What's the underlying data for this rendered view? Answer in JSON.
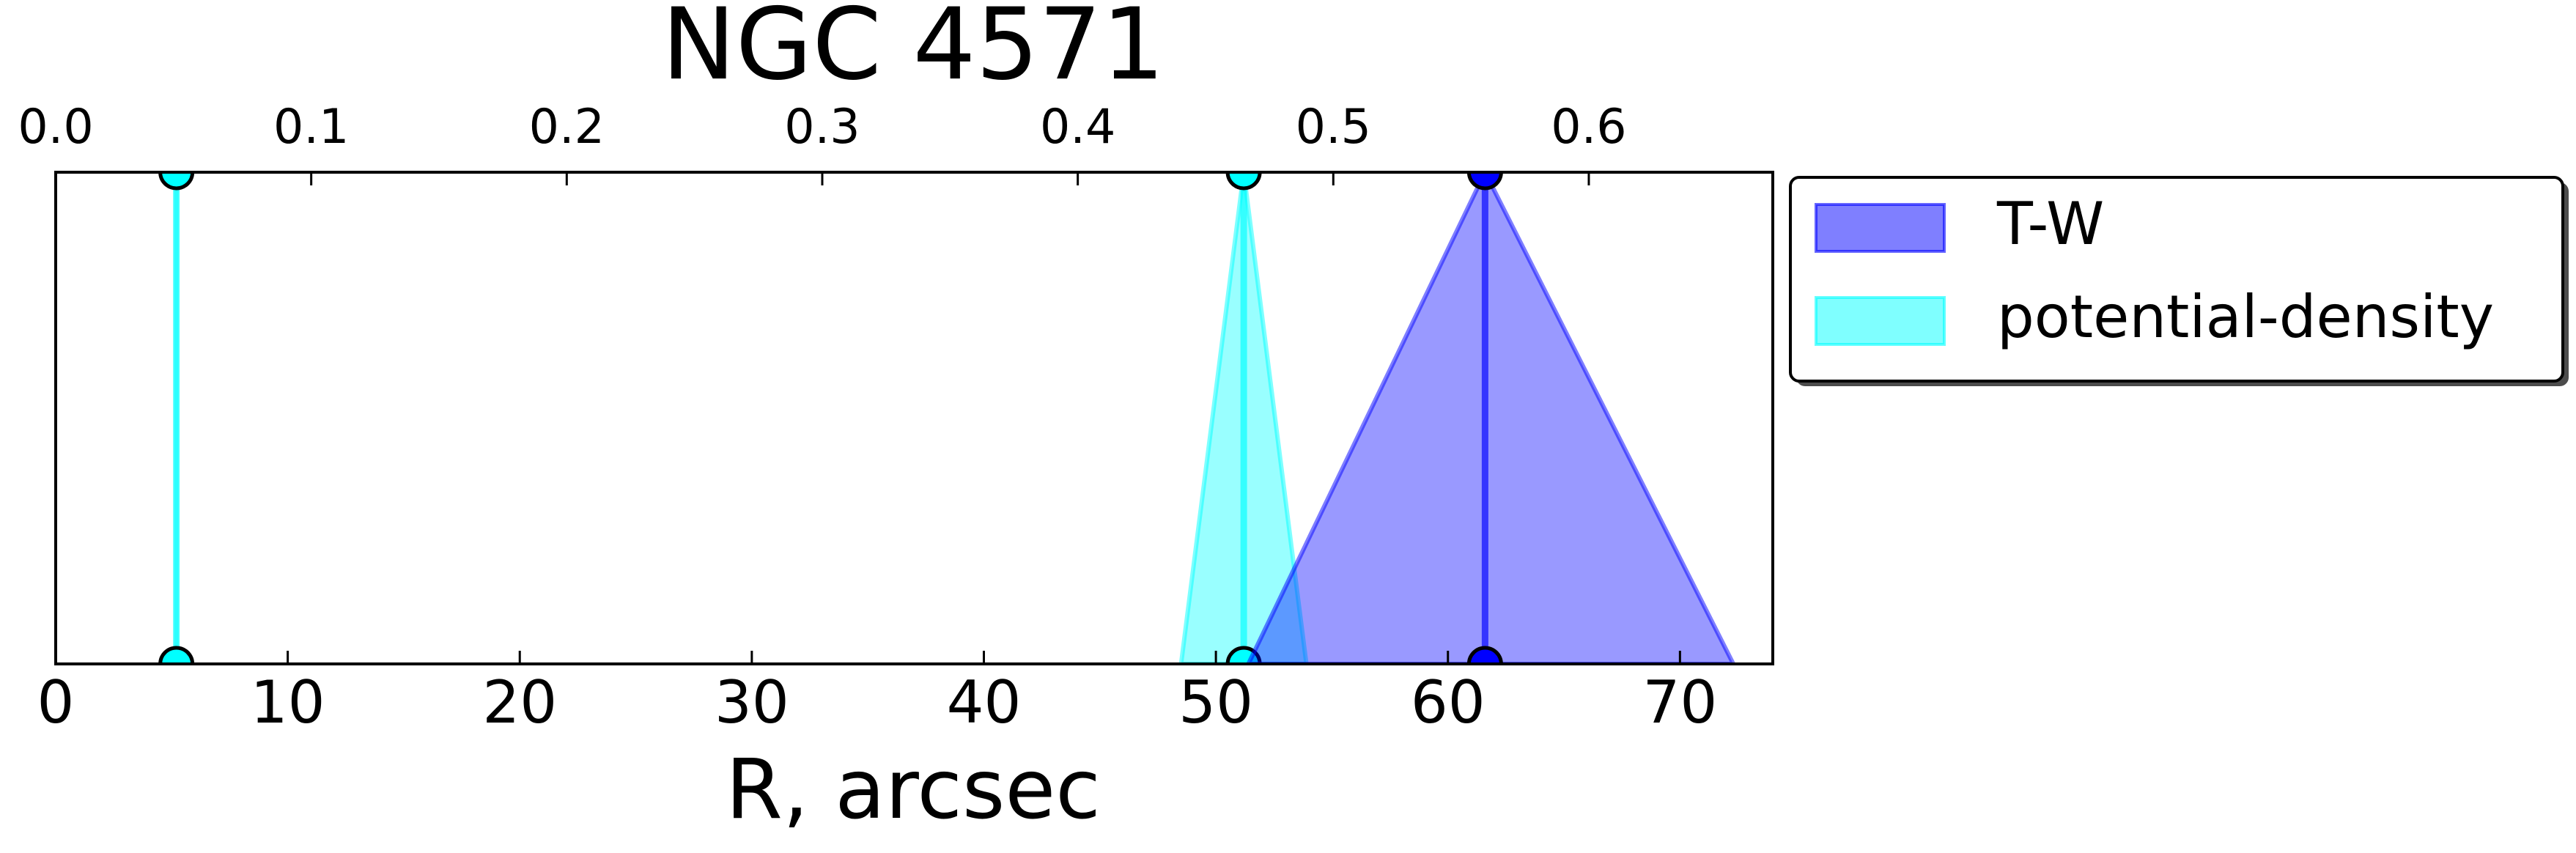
{
  "chart_data": {
    "type": "triangle-range",
    "title": "NGC 4571",
    "xlabel": "R, arcsec",
    "xlim": [
      0,
      74
    ],
    "xticks": [
      0,
      10,
      20,
      30,
      40,
      50,
      60,
      70
    ],
    "x2lim": [
      0,
      0.672
    ],
    "x2ticks": [
      {
        "value": 0,
        "label": "0.0"
      },
      0.1,
      0.2,
      0.3,
      0.4,
      0.5,
      0.6
    ],
    "legend": "outside-upper-right",
    "series": [
      {
        "name": "T-W",
        "color": "#0000ff",
        "values": [
          61.6
        ],
        "lower": [
          51.4
        ],
        "upper": [
          72.3
        ]
      },
      {
        "name": "potential-density",
        "color": "#00ffff",
        "values": [
          5.2,
          51.2
        ],
        "lower": [
          5.2,
          48.5
        ],
        "upper": [
          5.2,
          53.9
        ]
      }
    ]
  }
}
